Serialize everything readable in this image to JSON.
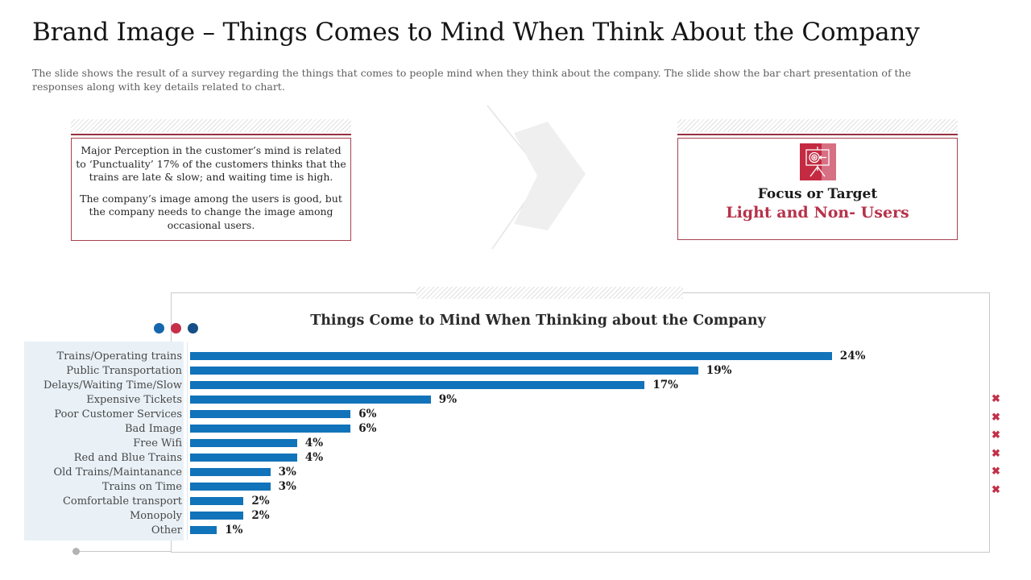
{
  "slide": {
    "title": "Brand Image – Things Comes to Mind When Think About the Company",
    "subtitle": "The slide shows the result of a survey regarding the things that comes to people mind when they think about the company. The slide show the bar chart presentation of the responses along with key details related to chart."
  },
  "perception_box": {
    "paragraph1": "Major Perception in the customer’s mind is related to ‘Punctuality’ 17% of the customers thinks that the trains are late & slow; and waiting time is high.",
    "paragraph2": "The company’s image among the users is good, but the company needs to change the image among occasional users."
  },
  "target_box": {
    "icon": "target-presentation-icon",
    "heading": "Focus or Target",
    "subheading": "Light and Non- Users"
  },
  "chart_data": {
    "type": "bar",
    "orientation": "horizontal",
    "title": "Things Come to Mind When Thinking about the Company",
    "categories": [
      "Trains/Operating trains",
      "Public Transportation",
      "Delays/Waiting Time/Slow",
      "Expensive Tickets",
      "Poor Customer Services",
      "Bad Image",
      "Free Wifi",
      "Red and Blue Trains",
      "Old Trains/Maintanance",
      "Trains on Time",
      "Comfortable transport",
      "Monopoly",
      "Other"
    ],
    "values": [
      24,
      19,
      17,
      9,
      6,
      6,
      4,
      4,
      3,
      3,
      2,
      2,
      1
    ],
    "unit": "%",
    "xlim": [
      0,
      25
    ],
    "grid": false,
    "legend": "none",
    "bar_color": "#1173b9",
    "data_labels": [
      "24%",
      "19%",
      "17%",
      "9%",
      "6%",
      "6%",
      "4%",
      "4%",
      "3%",
      "3%",
      "2%",
      "2%",
      "1%"
    ]
  },
  "decorations": {
    "dots_colors": [
      "#1566ad",
      "#c52f49",
      "#164e87"
    ],
    "x_mark_glyph": "✖",
    "x_mark_count": 6,
    "x_mark_color": "#c23149",
    "accent_red": "#b6324a",
    "label_panel_bg": "#e9f1f7"
  }
}
